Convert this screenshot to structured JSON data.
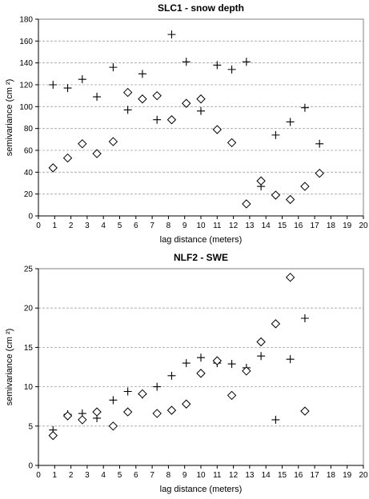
{
  "chart_data": [
    {
      "type": "scatter",
      "title": "SLC1 - snow depth",
      "xlabel": "lag distance (meters)",
      "ylabel": "semivariance (cm ²)",
      "xlim": [
        0,
        20
      ],
      "ylim": [
        0,
        180
      ],
      "xticks": [
        "0",
        "1",
        "2",
        "3",
        "4",
        "5",
        "6",
        "7",
        "8",
        "9",
        "10",
        "11",
        "12",
        "13",
        "14",
        "15",
        "16",
        "17",
        "18",
        "19",
        "20"
      ],
      "yticks": [
        "0",
        "20",
        "40",
        "60",
        "80",
        "100",
        "120",
        "140",
        "160",
        "180"
      ],
      "grid": "horizontal",
      "series": [
        {
          "marker": "plus",
          "points": [
            [
              0.9,
              120
            ],
            [
              1.8,
              117
            ],
            [
              2.7,
              125
            ],
            [
              3.6,
              109
            ],
            [
              4.6,
              136
            ],
            [
              5.5,
              97
            ],
            [
              6.4,
              130
            ],
            [
              7.3,
              88
            ],
            [
              8.2,
              166
            ],
            [
              9.1,
              141
            ],
            [
              10.0,
              96
            ],
            [
              11.0,
              138
            ],
            [
              11.9,
              134
            ],
            [
              12.8,
              141
            ],
            [
              13.7,
              27
            ],
            [
              14.6,
              74
            ],
            [
              15.5,
              86
            ],
            [
              16.4,
              99
            ],
            [
              17.3,
              66
            ]
          ]
        },
        {
          "marker": "diamond",
          "points": [
            [
              0.9,
              44
            ],
            [
              1.8,
              53
            ],
            [
              2.7,
              66
            ],
            [
              3.6,
              57
            ],
            [
              4.6,
              68
            ],
            [
              5.5,
              113
            ],
            [
              6.4,
              107
            ],
            [
              7.3,
              110
            ],
            [
              8.2,
              88
            ],
            [
              9.1,
              103
            ],
            [
              10.0,
              107
            ],
            [
              11.0,
              79
            ],
            [
              11.9,
              67
            ],
            [
              12.8,
              11
            ],
            [
              13.7,
              32
            ],
            [
              14.6,
              19
            ],
            [
              15.5,
              15
            ],
            [
              16.4,
              27
            ],
            [
              17.3,
              39
            ]
          ]
        }
      ]
    },
    {
      "type": "scatter",
      "title": "NLF2 - SWE",
      "xlabel": "lag distance (meters)",
      "ylabel": "semivariance (cm ²)",
      "xlim": [
        0,
        20
      ],
      "ylim": [
        0,
        25
      ],
      "xticks": [
        "0",
        "1",
        "2",
        "3",
        "4",
        "5",
        "6",
        "7",
        "8",
        "9",
        "10",
        "11",
        "12",
        "13",
        "14",
        "15",
        "16",
        "17",
        "18",
        "19",
        "20"
      ],
      "yticks": [
        "0",
        "5",
        "10",
        "15",
        "20",
        "25"
      ],
      "grid": "horizontal",
      "series": [
        {
          "marker": "plus",
          "points": [
            [
              0.9,
              4.5
            ],
            [
              1.8,
              6.5
            ],
            [
              2.7,
              6.6
            ],
            [
              3.6,
              6.0
            ],
            [
              4.6,
              8.3
            ],
            [
              5.5,
              9.4
            ],
            [
              6.4,
              9.0
            ],
            [
              7.3,
              10.0
            ],
            [
              8.2,
              11.4
            ],
            [
              9.1,
              13.0
            ],
            [
              10.0,
              13.7
            ],
            [
              11.0,
              13.0
            ],
            [
              11.9,
              12.9
            ],
            [
              12.8,
              12.4
            ],
            [
              13.7,
              13.9
            ],
            [
              14.6,
              5.8
            ],
            [
              15.5,
              13.5
            ],
            [
              16.4,
              18.7
            ]
          ]
        },
        {
          "marker": "diamond",
          "points": [
            [
              0.9,
              3.8
            ],
            [
              1.8,
              6.3
            ],
            [
              2.7,
              5.8
            ],
            [
              3.6,
              6.8
            ],
            [
              4.6,
              5.0
            ],
            [
              5.5,
              6.8
            ],
            [
              6.4,
              9.1
            ],
            [
              7.3,
              6.6
            ],
            [
              8.2,
              7.0
            ],
            [
              9.1,
              7.8
            ],
            [
              10.0,
              11.7
            ],
            [
              11.0,
              13.3
            ],
            [
              11.9,
              8.9
            ],
            [
              12.8,
              12.0
            ],
            [
              13.7,
              15.7
            ],
            [
              14.6,
              18.0
            ],
            [
              15.5,
              23.9
            ],
            [
              16.4,
              6.9
            ]
          ]
        }
      ]
    }
  ]
}
